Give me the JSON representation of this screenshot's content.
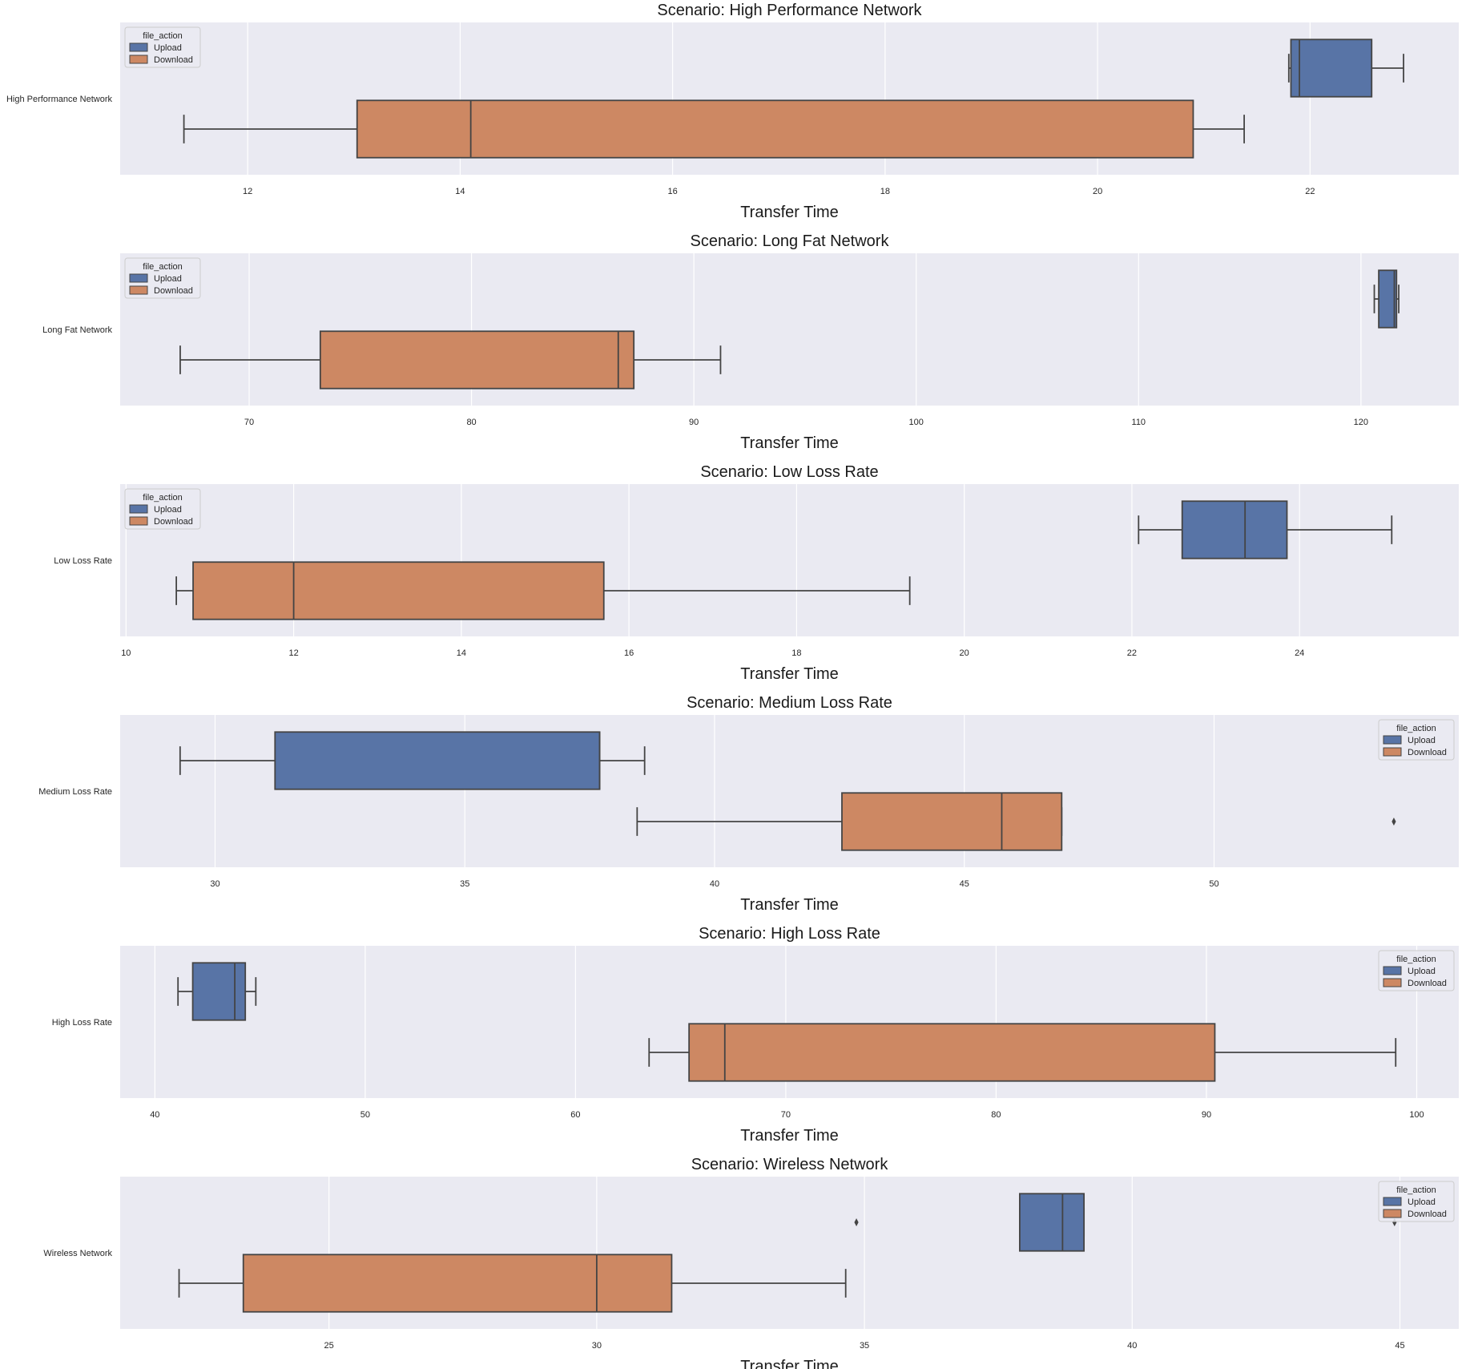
{
  "figure": {
    "legend_title": "file_action",
    "colors": {
      "Upload": "#5874a6",
      "Download": "#cd8863",
      "plot_bg": "#eaeaf2",
      "grid": "#ffffff",
      "line": "#444444"
    }
  },
  "chart_data": [
    {
      "type": "boxplot",
      "orientation": "horizontal",
      "title": "Scenario: High Performance Network",
      "xlabel": "Transfer Time",
      "ylabel": "",
      "category": "High Performance Network",
      "xlim": [
        10.8,
        23.4
      ],
      "xticks": [
        12,
        14,
        16,
        18,
        20,
        22
      ],
      "grid": true,
      "legend_position": "upper left",
      "series": [
        {
          "name": "Upload",
          "min": 21.8,
          "q1": 21.82,
          "median": 21.9,
          "q3": 22.58,
          "max": 22.88,
          "outliers": []
        },
        {
          "name": "Download",
          "min": 11.4,
          "q1": 13.03,
          "median": 14.1,
          "q3": 20.9,
          "max": 21.38,
          "outliers": []
        }
      ]
    },
    {
      "type": "boxplot",
      "orientation": "horizontal",
      "title": "Scenario: Long Fat Network",
      "xlabel": "Transfer Time",
      "ylabel": "",
      "category": "Long Fat Network",
      "xlim": [
        64.2,
        124.4
      ],
      "xticks": [
        70,
        80,
        90,
        100,
        110,
        120
      ],
      "grid": true,
      "legend_position": "upper left",
      "series": [
        {
          "name": "Upload",
          "min": 120.6,
          "q1": 120.8,
          "median": 121.5,
          "q3": 121.6,
          "max": 121.7,
          "outliers": []
        },
        {
          "name": "Download",
          "min": 66.9,
          "q1": 73.2,
          "median": 86.6,
          "q3": 87.3,
          "max": 91.2,
          "outliers": []
        }
      ]
    },
    {
      "type": "boxplot",
      "orientation": "horizontal",
      "title": "Scenario: Low Loss Rate",
      "xlabel": "Transfer Time",
      "ylabel": "",
      "category": "Low Loss Rate",
      "xlim": [
        9.93,
        25.9
      ],
      "xticks": [
        10,
        12,
        14,
        16,
        18,
        20,
        22,
        24
      ],
      "grid": true,
      "legend_position": "upper left",
      "series": [
        {
          "name": "Upload",
          "min": 22.08,
          "q1": 22.6,
          "median": 23.35,
          "q3": 23.85,
          "max": 25.1,
          "outliers": []
        },
        {
          "name": "Download",
          "min": 10.6,
          "q1": 10.8,
          "median": 12.0,
          "q3": 15.7,
          "max": 19.35,
          "outliers": []
        }
      ]
    },
    {
      "type": "boxplot",
      "orientation": "horizontal",
      "title": "Scenario: Medium Loss Rate",
      "xlabel": "Transfer Time",
      "ylabel": "",
      "category": "Medium Loss Rate",
      "xlim": [
        28.1,
        54.9
      ],
      "xticks": [
        30,
        35,
        40,
        45,
        50
      ],
      "grid": true,
      "legend_position": "upper right",
      "series": [
        {
          "name": "Upload",
          "min": 29.3,
          "q1": 31.2,
          "median": 37.7,
          "q3": 37.7,
          "max": 38.6,
          "outliers": []
        },
        {
          "name": "Download",
          "min": 38.45,
          "q1": 42.55,
          "median": 45.75,
          "q3": 46.95,
          "max": 46.95,
          "outliers": [
            53.6
          ]
        }
      ]
    },
    {
      "type": "boxplot",
      "orientation": "horizontal",
      "title": "Scenario: High Loss Rate",
      "xlabel": "Transfer Time",
      "ylabel": "",
      "category": "High Loss Rate",
      "xlim": [
        38.35,
        102.0
      ],
      "xticks": [
        40,
        50,
        60,
        70,
        80,
        90,
        100
      ],
      "grid": true,
      "legend_position": "upper right",
      "series": [
        {
          "name": "Upload",
          "min": 41.1,
          "q1": 41.8,
          "median": 43.8,
          "q3": 44.3,
          "max": 44.8,
          "outliers": []
        },
        {
          "name": "Download",
          "min": 63.5,
          "q1": 65.4,
          "median": 67.1,
          "q3": 90.4,
          "max": 99.0,
          "outliers": []
        }
      ]
    },
    {
      "type": "boxplot",
      "orientation": "horizontal",
      "title": "Scenario: Wireless Network",
      "xlabel": "Transfer Time",
      "ylabel": "",
      "category": "Wireless Network",
      "xlim": [
        21.1,
        46.1
      ],
      "xticks": [
        25,
        30,
        35,
        40,
        45
      ],
      "grid": true,
      "legend_position": "upper right",
      "series": [
        {
          "name": "Upload",
          "min": 37.9,
          "q1": 37.9,
          "median": 38.7,
          "q3": 39.1,
          "max": 39.1,
          "outliers": [
            34.85,
            44.9
          ]
        },
        {
          "name": "Download",
          "min": 22.2,
          "q1": 23.4,
          "median": 30.0,
          "q3": 31.4,
          "max": 34.65,
          "outliers": []
        }
      ]
    }
  ]
}
